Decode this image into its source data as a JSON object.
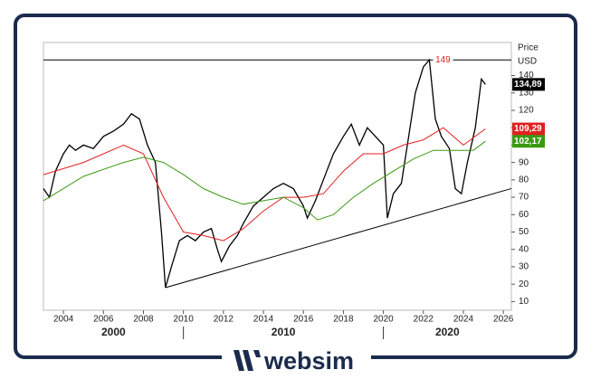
{
  "chart_data": {
    "type": "line",
    "axis_label": [
      "Price",
      "USD"
    ],
    "xlim": [
      2003,
      2026.4
    ],
    "xticks": [
      2004,
      2006,
      2008,
      2010,
      2012,
      2014,
      2016,
      2018,
      2020,
      2022,
      2024,
      2026
    ],
    "decades": [
      2000,
      2010,
      2020
    ],
    "ylim": [
      5,
      159
    ],
    "yticks": [
      10,
      20,
      30,
      40,
      50,
      60,
      70,
      80,
      90,
      100,
      110,
      120,
      130,
      140
    ],
    "series": [
      {
        "color": "#000000",
        "x": [
          2003.0,
          2003.3,
          2003.6,
          2004.0,
          2004.3,
          2004.6,
          2005.0,
          2005.5,
          2006.0,
          2006.5,
          2007.0,
          2007.4,
          2007.8,
          2008.2,
          2008.6,
          2008.9,
          2009.1,
          2009.4,
          2009.8,
          2010.2,
          2010.6,
          2011.0,
          2011.4,
          2011.7,
          2011.9,
          2012.3,
          2012.7,
          2013.0,
          2013.5,
          2014.0,
          2014.5,
          2015.0,
          2015.5,
          2016.0,
          2016.2,
          2016.6,
          2017.0,
          2017.5,
          2018.0,
          2018.4,
          2018.8,
          2019.2,
          2019.6,
          2020.0,
          2020.2,
          2020.5,
          2020.9,
          2021.2,
          2021.6,
          2022.0,
          2022.3,
          2022.6,
          2022.9,
          2023.3,
          2023.6,
          2023.9,
          2024.2,
          2024.6,
          2024.9,
          2025.1
        ],
        "values": [
          75,
          70,
          85,
          95,
          100,
          97,
          100,
          98,
          105,
          108,
          112,
          118,
          115,
          100,
          90,
          50,
          18,
          30,
          45,
          48,
          45,
          50,
          52,
          40,
          33,
          42,
          48,
          55,
          65,
          70,
          75,
          78,
          75,
          65,
          58,
          68,
          80,
          95,
          105,
          112,
          100,
          110,
          105,
          100,
          58,
          72,
          78,
          100,
          130,
          145,
          149,
          115,
          105,
          98,
          75,
          72,
          90,
          110,
          138,
          134.89
        ],
        "current": {
          "value": 134.89,
          "label": "134,89"
        },
        "label_fill": "#000000"
      },
      {
        "color": "#e02020",
        "x": [
          2003,
          2005,
          2007,
          2008,
          2009,
          2010,
          2011,
          2012,
          2013,
          2014,
          2015,
          2016,
          2017,
          2018,
          2019,
          2020,
          2021,
          2022,
          2023,
          2024,
          2025.1
        ],
        "values": [
          83,
          90,
          100,
          95,
          70,
          50,
          48,
          45,
          52,
          62,
          70,
          70,
          72,
          85,
          95,
          95,
          100,
          103,
          110,
          100,
          109.29
        ],
        "current": {
          "value": 109.29,
          "label": "109,29"
        },
        "label_fill": "#e02020"
      },
      {
        "color": "#3a9a12",
        "x": [
          2003,
          2005,
          2007,
          2008,
          2009,
          2010,
          2011,
          2012,
          2013,
          2014,
          2015,
          2016,
          2016.7,
          2017.5,
          2018.5,
          2019.5,
          2020.5,
          2021.5,
          2022.5,
          2023.5,
          2024.5,
          2025.1
        ],
        "values": [
          68,
          82,
          90,
          93,
          90,
          83,
          75,
          70,
          66,
          68,
          70,
          64,
          57,
          60,
          70,
          78,
          85,
          92,
          97,
          97,
          97,
          102.17
        ],
        "current": {
          "value": 102.17,
          "label": "102,17"
        },
        "label_fill": "#3a9a12"
      }
    ],
    "resistance": {
      "value": 149,
      "x": [
        2003,
        2022.3
      ],
      "color": "#e02020"
    },
    "trendline": {
      "x": [
        2009.1,
        2026.4
      ],
      "y": [
        18,
        75
      ]
    }
  },
  "footer": {
    "brand": "websim"
  }
}
